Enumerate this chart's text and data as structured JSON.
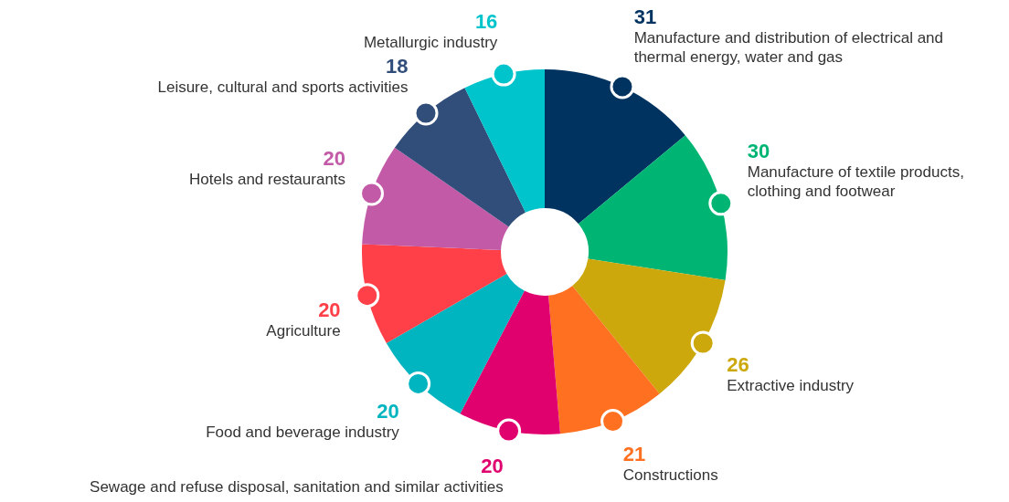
{
  "chart_data": {
    "type": "donut",
    "categories": [
      "Manufacture and distribution of electrical and thermal energy, water and gas",
      "Manufacture of textile products, clothing and footwear",
      "Extractive industry",
      "Constructions",
      "Sewage and refuse disposal, sanitation and similar activities",
      "Food and beverage industry",
      "Agriculture",
      "Hotels and restaurants",
      "Leisure, cultural and sports activities",
      "Metallurgic industry"
    ],
    "values": [
      31,
      30,
      26,
      21,
      20,
      20,
      20,
      20,
      18,
      16
    ],
    "colors": [
      "#003360",
      "#00b574",
      "#cca80c",
      "#ff7020",
      "#e0006e",
      "#00b4c0",
      "#ff4048",
      "#c25aa8",
      "#314e7a",
      "#00c4cc"
    ],
    "data_labels": true,
    "legend": false
  }
}
